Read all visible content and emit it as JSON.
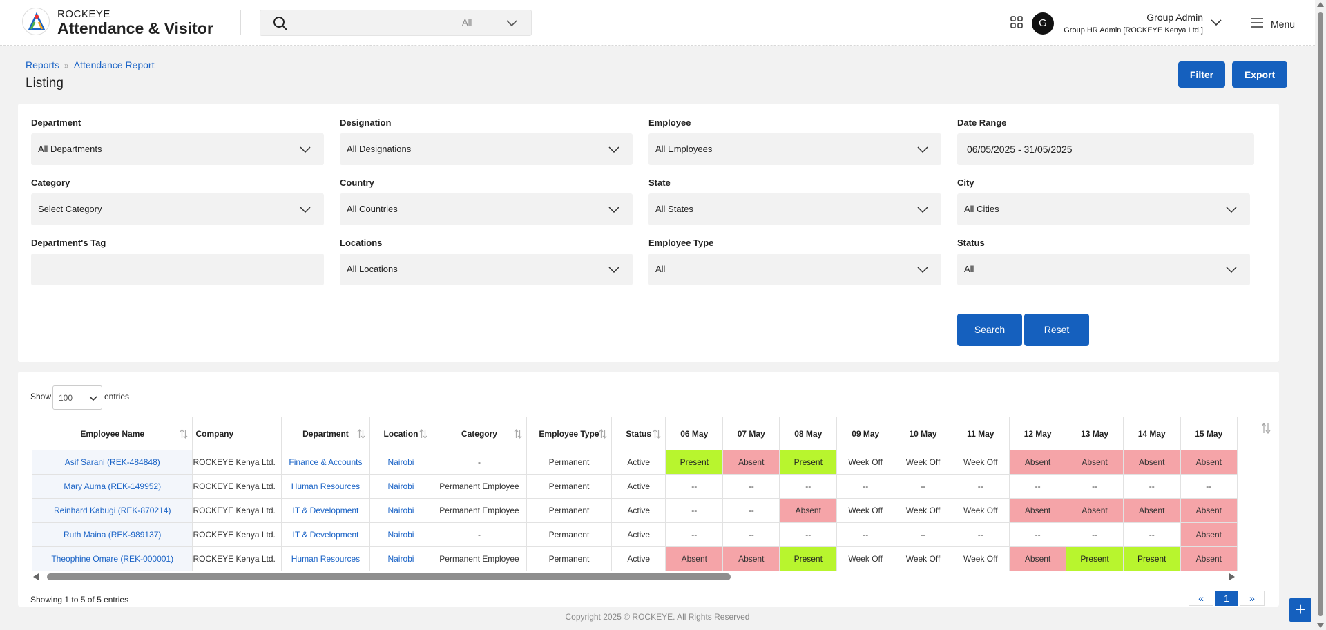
{
  "header": {
    "brand_small": "ROCKEYE",
    "brand_big": "Attendance & Visitor",
    "search_placeholder": "",
    "search_scope": "All",
    "avatar_letter": "G",
    "user_name": "Group Admin",
    "user_role": "Group HR Admin [ROCKEYE Kenya Ltd.]",
    "menu_label": "Menu"
  },
  "breadcrumb": {
    "root": "Reports",
    "current": "Attendance Report"
  },
  "page_title": "Listing",
  "actions": {
    "filter": "Filter",
    "export": "Export"
  },
  "filters": {
    "department": {
      "label": "Department",
      "value": "All Departments"
    },
    "designation": {
      "label": "Designation",
      "value": "All Designations"
    },
    "employee": {
      "label": "Employee",
      "value": "All Employees"
    },
    "date_range": {
      "label": "Date Range",
      "value": "06/05/2025 - 31/05/2025"
    },
    "category": {
      "label": "Category",
      "value": "Select Category"
    },
    "country": {
      "label": "Country",
      "value": "All Countries"
    },
    "state": {
      "label": "State",
      "value": "All States"
    },
    "city": {
      "label": "City",
      "value": "All Cities"
    },
    "dept_tag": {
      "label": "Department's Tag",
      "value": ""
    },
    "locations": {
      "label": "Locations",
      "value": "All Locations"
    },
    "employee_type": {
      "label": "Employee Type",
      "value": "All"
    },
    "status": {
      "label": "Status",
      "value": "All"
    },
    "search_btn": "Search",
    "reset_btn": "Reset"
  },
  "table_controls": {
    "show": "Show",
    "entries_value": "100",
    "entries": "entries"
  },
  "table": {
    "columns": [
      "Employee Name",
      "Company",
      "Department",
      "Location",
      "Category",
      "Employee Type",
      "Status",
      "06 May",
      "07 May",
      "08 May",
      "09 May",
      "10 May",
      "11 May",
      "12 May",
      "13 May",
      "14 May",
      "15 May"
    ],
    "rows": [
      [
        "Asif Sarani (REK-484848)",
        "ROCKEYE Kenya Ltd.",
        "Finance & Accounts",
        "Nairobi",
        "-",
        "Permanent",
        "Active",
        "Present",
        "Absent",
        "Present",
        "Week Off",
        "Week Off",
        "Week Off",
        "Absent",
        "Absent",
        "Absent",
        "Absent"
      ],
      [
        "Mary Auma (REK-149952)",
        "ROCKEYE Kenya Ltd.",
        "Human Resources",
        "Nairobi",
        "Permanent Employee",
        "Permanent",
        "Active",
        "--",
        "--",
        "--",
        "--",
        "--",
        "--",
        "--",
        "--",
        "--",
        "--"
      ],
      [
        "Reinhard Kabugi (REK-870214)",
        "ROCKEYE Kenya Ltd.",
        "IT & Development",
        "Nairobi",
        "Permanent Employee",
        "Permanent",
        "Active",
        "--",
        "--",
        "Absent",
        "Week Off",
        "Week Off",
        "Week Off",
        "Absent",
        "Absent",
        "Absent",
        "Absent"
      ],
      [
        "Ruth Maina (REK-989137)",
        "ROCKEYE Kenya Ltd.",
        "IT & Development",
        "Nairobi",
        "-",
        "Permanent",
        "Active",
        "--",
        "--",
        "--",
        "--",
        "--",
        "--",
        "--",
        "--",
        "--",
        "Absent"
      ],
      [
        "Theophine Omare (REK-000001)",
        "ROCKEYE Kenya Ltd.",
        "Human Resources",
        "Nairobi",
        "Permanent Employee",
        "Permanent",
        "Active",
        "Absent",
        "Absent",
        "Present",
        "Week Off",
        "Week Off",
        "Week Off",
        "Absent",
        "Present",
        "Present",
        "Absent"
      ]
    ]
  },
  "showing": "Showing 1 to 5 of 5 entries",
  "pagination": {
    "prev": "«",
    "page": "1",
    "next": "»"
  },
  "footer": "Copyright 2025 © ROCKEYE. All Rights Reserved",
  "colors": {
    "primary": "#1560be",
    "present": "#b8f52e",
    "absent": "#f5a4a8",
    "link": "#1a63c6"
  }
}
